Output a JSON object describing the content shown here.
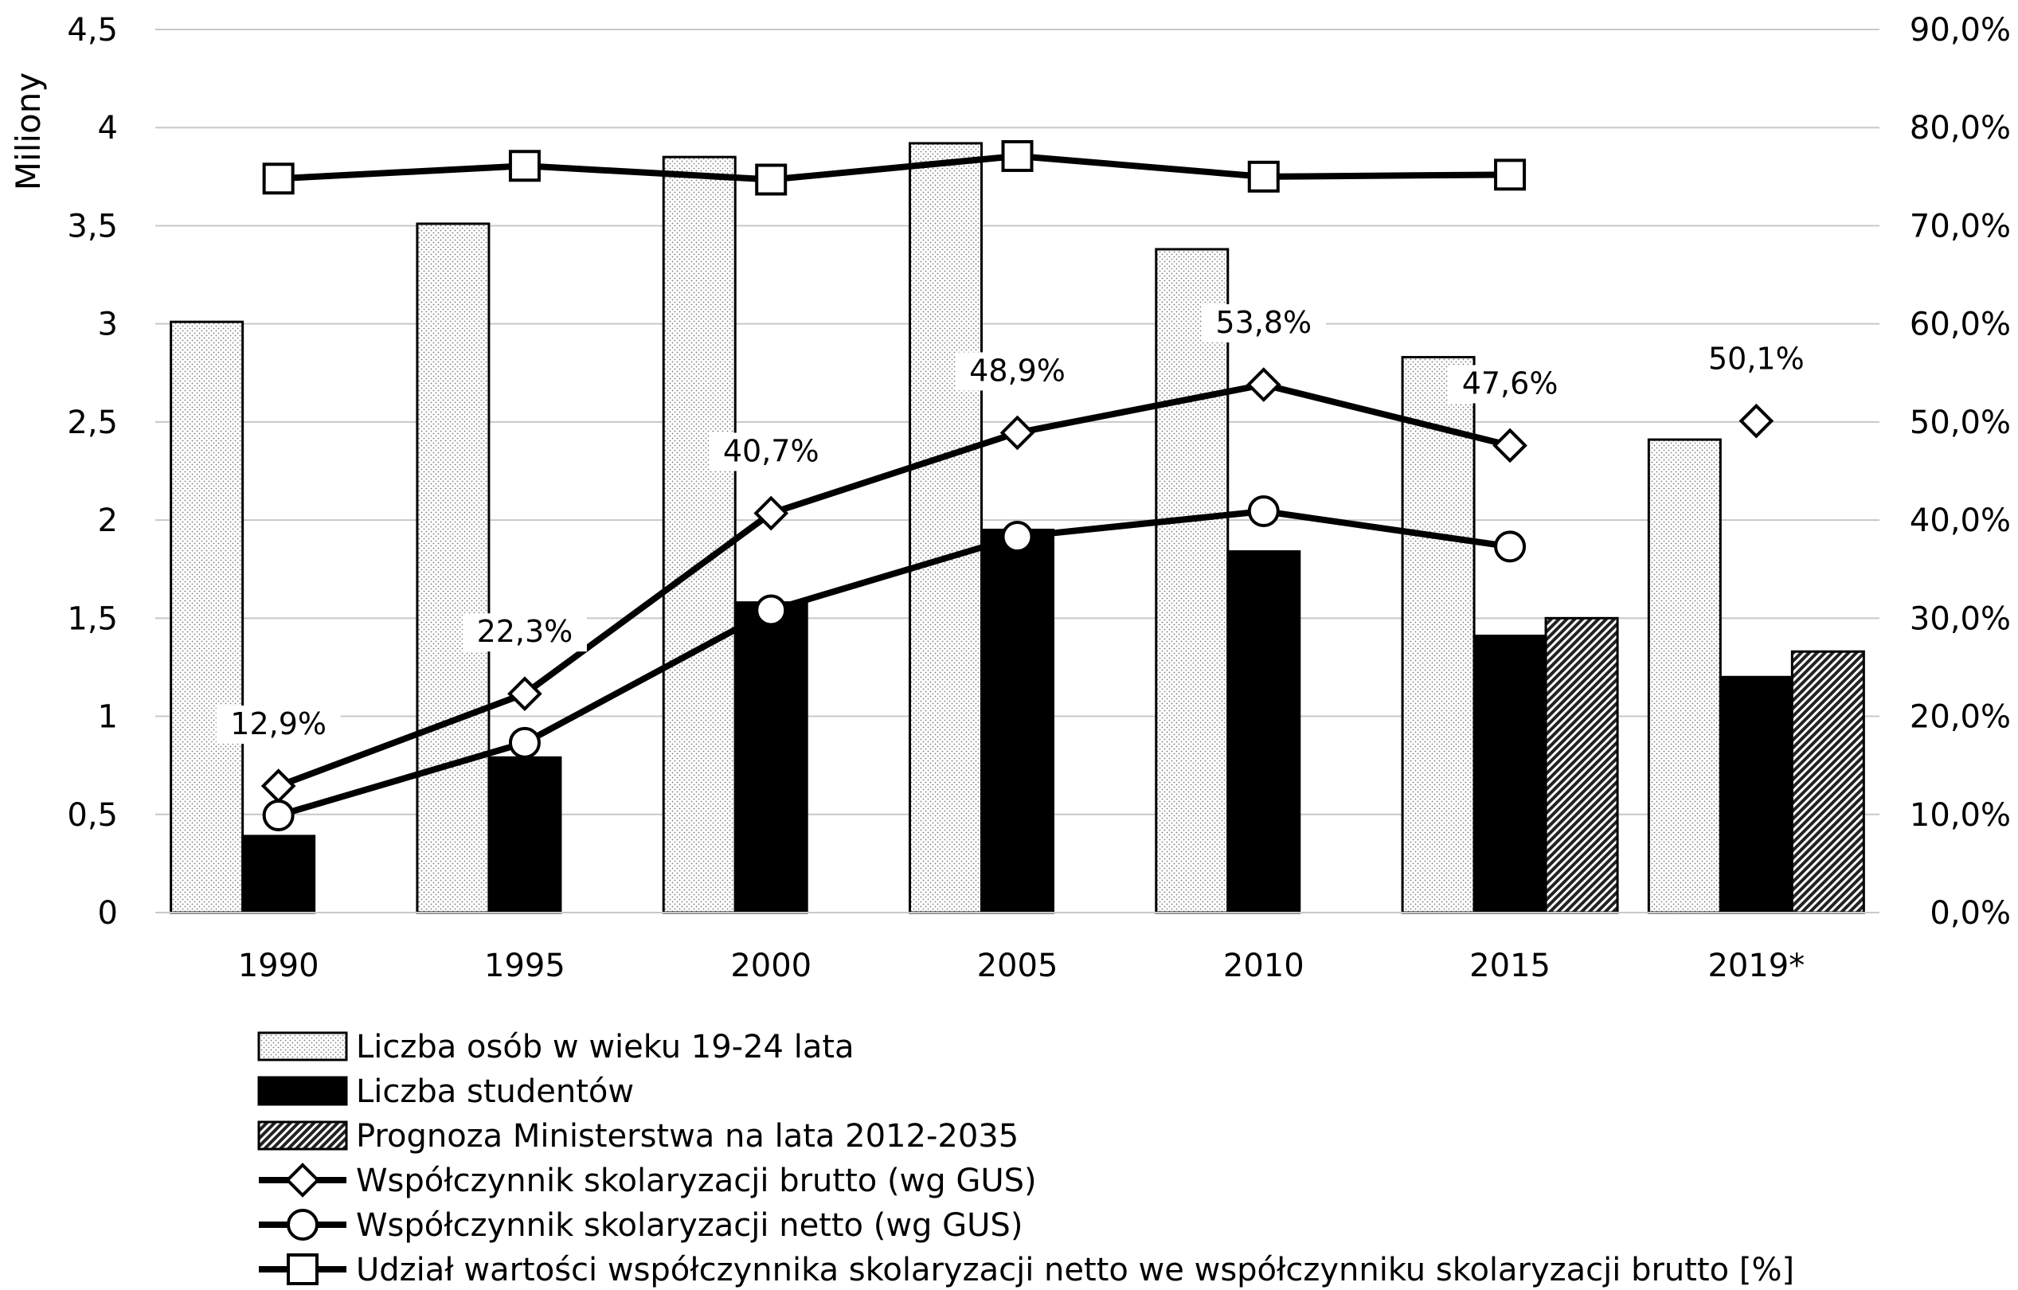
{
  "chart_data": {
    "type": "bar",
    "categories": [
      "1990",
      "1995",
      "2000",
      "2005",
      "2010",
      "2015",
      "2019*"
    ],
    "y_left": {
      "label": "Miliony",
      "range": [
        0,
        4.5
      ],
      "ticks": [
        "0",
        "0,5",
        "1",
        "1,5",
        "2",
        "2,5",
        "3",
        "3,5",
        "4",
        "4,5"
      ]
    },
    "y_right": {
      "range": [
        0,
        90
      ],
      "ticks": [
        "0,0%",
        "10,0%",
        "20,0%",
        "30,0%",
        "40,0%",
        "50,0%",
        "60,0%",
        "70,0%",
        "80,0%",
        "90,0%"
      ]
    },
    "grid": true,
    "legend_position": "bottom",
    "bar_series": [
      {
        "name": "Liczba osób w wieku 19-24 lata",
        "pattern": "dots",
        "values": [
          3.01,
          3.51,
          3.85,
          3.92,
          3.38,
          2.83,
          2.41
        ]
      },
      {
        "name": "Liczba studentów",
        "pattern": "solid",
        "values": [
          0.39,
          0.79,
          1.58,
          1.95,
          1.84,
          1.41,
          1.2
        ]
      },
      {
        "name": "Prognoza Ministerstwa na lata 2012-2035",
        "pattern": "hatch",
        "values": [
          null,
          null,
          null,
          null,
          null,
          1.5,
          1.33
        ]
      }
    ],
    "line_series": [
      {
        "name": "Współczynnik skolaryzacji brutto (wg GUS)",
        "marker": "diamond",
        "axis": "right",
        "values": [
          12.9,
          22.3,
          40.7,
          48.9,
          53.8,
          47.6,
          50.1
        ],
        "labels": [
          "12,9%",
          "22,3%",
          "40,7%",
          "48,9%",
          "53,8%",
          "47,6%",
          "50,1%"
        ],
        "connected_until": 5
      },
      {
        "name": "Współczynnik skolaryzacji netto (wg GUS)",
        "marker": "circle",
        "axis": "right",
        "values": [
          9.9,
          17.3,
          30.8,
          38.3,
          40.9,
          37.3,
          null
        ]
      },
      {
        "name": "Udział wartości współczynnika skolaryzacji netto we współczynniku skolaryzacji brutto [%]",
        "marker": "square",
        "axis": "right",
        "values": [
          74.8,
          76.1,
          74.7,
          77.1,
          75.0,
          75.2,
          null
        ]
      }
    ]
  }
}
